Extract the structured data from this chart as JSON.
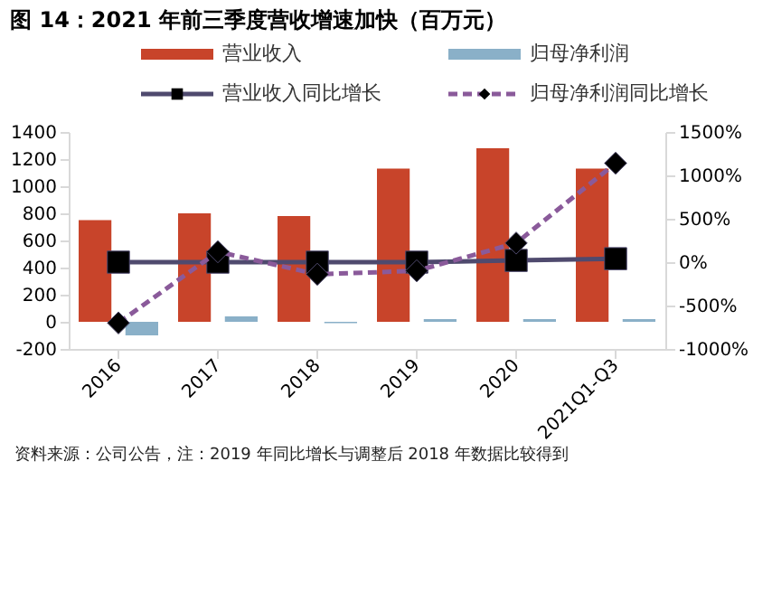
{
  "chart_data": {
    "type": "bar",
    "title": "图 14：2021 年前三季度营收增速加快（百万元）",
    "categories": [
      "2016",
      "2017",
      "2018",
      "2019",
      "2020",
      "2021Q1-Q3"
    ],
    "series": [
      {
        "name": "营业收入",
        "color": "#c8442a",
        "values": [
          750,
          800,
          780,
          1130,
          1280,
          1130
        ]
      },
      {
        "name": "归母净利润",
        "color": "#8ab0c8",
        "values": [
          -100,
          40,
          -10,
          20,
          20,
          20
        ]
      },
      {
        "name": "营业收入同比增长",
        "type": "line",
        "axis": "y2",
        "color": "#4f4a6e",
        "marker": "square",
        "line_style": "solid",
        "values": [
          0,
          0,
          0,
          0,
          20,
          40
        ]
      },
      {
        "name": "归母净利润同比增长",
        "type": "line",
        "axis": "y2",
        "color": "#8a5a9a",
        "marker": "diamond",
        "line_style": "dashed",
        "values": [
          -700,
          120,
          -140,
          -100,
          220,
          1140
        ]
      }
    ],
    "ylim": [
      -200,
      1400
    ],
    "yticks": [
      -200,
      0,
      200,
      400,
      600,
      800,
      1000,
      1200,
      1400
    ],
    "y2lim": [
      -1000,
      1500
    ],
    "y2ticks": [
      {
        "value": -1000,
        "label": "-1000%"
      },
      {
        "value": -500,
        "label": "-500%"
      },
      {
        "value": 0,
        "label": "0%"
      },
      {
        "value": 500,
        "label": "500%"
      },
      {
        "value": 1000,
        "label": "1000%"
      },
      {
        "value": 1500,
        "label": "1500%"
      }
    ],
    "grid": false,
    "legend": "top",
    "annotations": [
      "资料来源：公司公告，注：2019 年同比增长与调整后 2018 年数据比较得到"
    ]
  }
}
